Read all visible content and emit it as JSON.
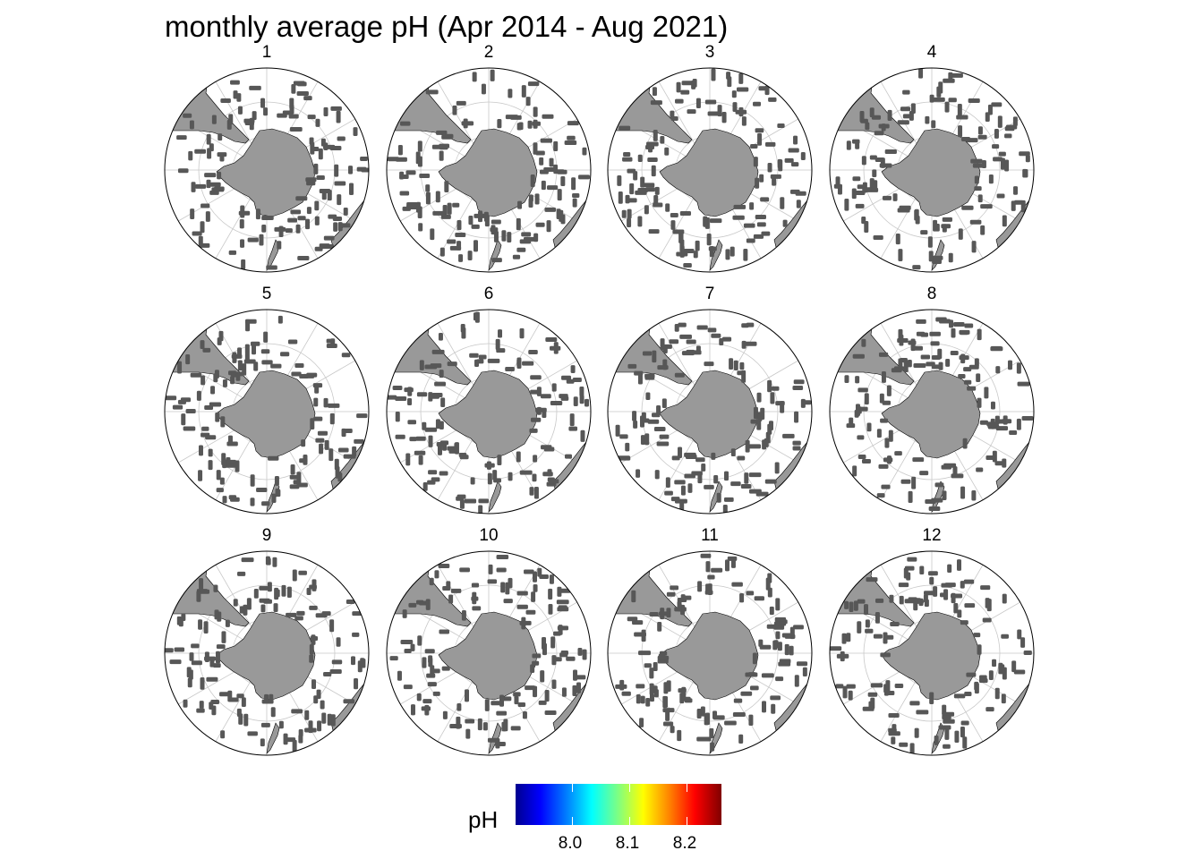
{
  "title": "monthly average pH (Apr 2014 - Aug 2021)",
  "panels": [
    {
      "label": "1"
    },
    {
      "label": "2"
    },
    {
      "label": "3"
    },
    {
      "label": "4"
    },
    {
      "label": "5"
    },
    {
      "label": "6"
    },
    {
      "label": "7"
    },
    {
      "label": "8"
    },
    {
      "label": "9"
    },
    {
      "label": "10"
    },
    {
      "label": "11"
    },
    {
      "label": "12"
    }
  ],
  "legend": {
    "title": "pH",
    "ticks": [
      "8.0",
      "8.1",
      "8.2"
    ],
    "colors": [
      "#00008f",
      "#0000ff",
      "#0080ff",
      "#00ffff",
      "#80ff80",
      "#ffff00",
      "#ff8000",
      "#ff0000",
      "#800000"
    ]
  },
  "colors": {
    "land": "#999999",
    "observations": "#575757",
    "graticule": "#c8c8c8",
    "frame": "#000000"
  }
}
